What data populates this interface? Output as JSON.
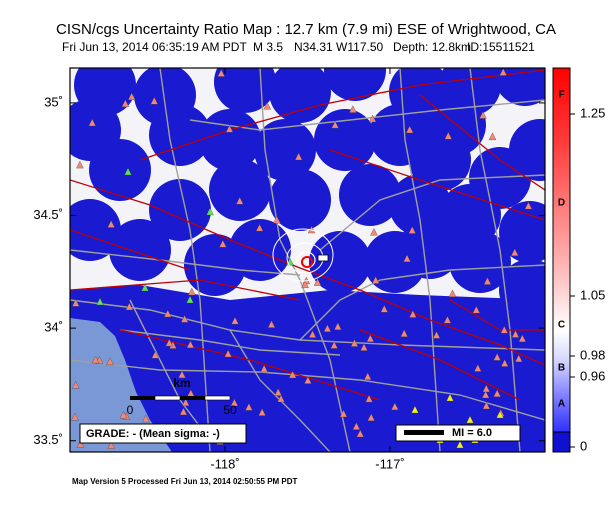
{
  "header": {
    "title": "CISN/cgs Uncertainty Ratio Map : 12.7 km (7.9 mi) ESE of Wrightwood, CA",
    "subtitle": [
      "Fri Jun 13, 2014 06:35:19 AM PDT",
      "M 3.5",
      "N34.31 W117.50",
      "Depth: 12.8km",
      "ID:15511521"
    ]
  },
  "map": {
    "lat_lim": [
      33.45,
      35.155
    ],
    "lon_lim": [
      -118.94,
      -116.06
    ],
    "lat_ticks": [
      {
        "value": 35,
        "label": "35˚"
      },
      {
        "value": 34.5,
        "label": "34.5˚"
      },
      {
        "value": 34,
        "label": "34˚"
      },
      {
        "value": 33.5,
        "label": "33.5˚"
      }
    ],
    "lon_ticks": [
      {
        "value": -118,
        "label": "-118˚"
      },
      {
        "value": -117,
        "label": "-117˚"
      }
    ]
  },
  "legend": {
    "grade": "GRADE: - (Mean sigma: -)",
    "mi": "MI = 6.0",
    "scale_unit": "km",
    "scale_labels": [
      "0",
      "50"
    ]
  },
  "colorbar": {
    "ticks": [
      1.25,
      1.05,
      0.98,
      0.96,
      0
    ],
    "grades": [
      "F",
      "D",
      "C",
      "B",
      "A"
    ]
  },
  "footer": "Map Version 5 Processed Fri Jun 13, 2014 02:50:55 PM PDT"
}
